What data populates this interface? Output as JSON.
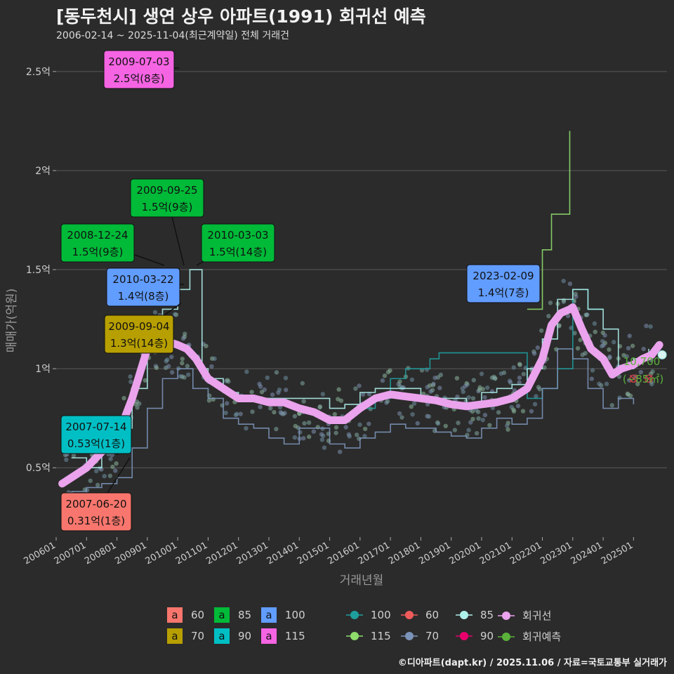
{
  "title": "[동두천시] 생연 상우 아파트(1991) 회귀선 예측",
  "subtitle": "2006-02-14 ~ 2025-11-04(최근계약일) 전체 거래건",
  "credit": "©디아파트(dapt.kr) / 2025.11.06 / 자료=국토교통부 실거래가",
  "chart_data": {
    "type": "scatter",
    "xlabel": "거래년월",
    "ylabel": "매매가(억원)",
    "xlim": [
      2006.0,
      2026.1
    ],
    "ylim": [
      0.15,
      2.62
    ],
    "x_ticks": [
      "200601",
      "200701",
      "200801",
      "200901",
      "201001",
      "201101",
      "201201",
      "201301",
      "201401",
      "201501",
      "201601",
      "201701",
      "201801",
      "201901",
      "202001",
      "202101",
      "202201",
      "202301",
      "202401",
      "202501"
    ],
    "y_ticks": [
      {
        "value": 0.5,
        "label": "0.5억"
      },
      {
        "value": 1.0,
        "label": "1억"
      },
      {
        "value": 1.5,
        "label": "1.5억"
      },
      {
        "value": 2.0,
        "label": "2억"
      },
      {
        "value": 2.5,
        "label": "2.5억"
      }
    ],
    "colors": {
      "60": "#f8766d",
      "70": "#b79f00",
      "85": "#00ba38",
      "90": "#00bfc4",
      "100": "#619cff",
      "115": "#f564e3",
      "line100": "#1f9e9e",
      "line115": "#8fdc6c",
      "line60": "#ef5b5b",
      "line70": "#7b93b8",
      "line85": "#aef0ec",
      "line90": "#e8006c",
      "regression": "#eaa3ec",
      "forecast": "#5ab23a"
    },
    "annotations": [
      {
        "date": "2009-07-03",
        "price": "2.5억(8층)",
        "area": "115"
      },
      {
        "date": "2009-09-25",
        "price": "1.5억(9층)",
        "area": "85"
      },
      {
        "date": "2008-12-24",
        "price": "1.5억(9층)",
        "area": "85"
      },
      {
        "date": "2010-03-03",
        "price": "1.5억(14층)",
        "area": "85"
      },
      {
        "date": "2010-03-22",
        "price": "1.4억(8층)",
        "area": "100"
      },
      {
        "date": "2009-09-04",
        "price": "1.3억(14층)",
        "area": "70"
      },
      {
        "date": "2023-02-09",
        "price": "1.4억(7층)",
        "area": "100"
      },
      {
        "date": "2007-07-14",
        "price": "0.53억(1층)",
        "area": "90"
      },
      {
        "date": "2007-06-20",
        "price": "0.31억(1층)",
        "area": "60"
      }
    ],
    "forecast_label": {
      "value": "10,700",
      "area": "(~85㎡)"
    },
    "series": [
      {
        "name": "회귀선",
        "x": [
          2006.2,
          2006.5,
          2007.0,
          2007.5,
          2008.0,
          2008.5,
          2008.8,
          2009.0,
          2009.2,
          2009.6,
          2010.0,
          2010.3,
          2010.6,
          2011.0,
          2011.5,
          2012.0,
          2012.5,
          2013.0,
          2013.5,
          2014.0,
          2014.5,
          2015.0,
          2015.5,
          2016.0,
          2016.5,
          2017.0,
          2017.5,
          2018.0,
          2018.5,
          2019.0,
          2019.5,
          2020.0,
          2020.5,
          2021.0,
          2021.5,
          2022.0,
          2022.3,
          2022.6,
          2022.9,
          2023.0,
          2023.3,
          2023.6,
          2024.0,
          2024.3,
          2024.6,
          2025.0,
          2025.3,
          2025.6,
          2025.85
        ],
        "y": [
          0.42,
          0.45,
          0.5,
          0.58,
          0.65,
          0.85,
          1.0,
          1.1,
          1.15,
          1.14,
          1.12,
          1.1,
          1.05,
          0.95,
          0.9,
          0.85,
          0.85,
          0.83,
          0.83,
          0.8,
          0.78,
          0.74,
          0.74,
          0.8,
          0.85,
          0.87,
          0.86,
          0.85,
          0.84,
          0.82,
          0.81,
          0.82,
          0.83,
          0.85,
          0.9,
          1.05,
          1.22,
          1.28,
          1.3,
          1.31,
          1.2,
          1.1,
          1.05,
          0.97,
          1.0,
          1.02,
          1.05,
          1.07,
          1.12
        ]
      },
      {
        "name": "100",
        "x": [
          2015.8,
          2016.5,
          2017.0,
          2017.5,
          2018.0,
          2018.3,
          2018.6,
          2021.5,
          2022.0,
          2022.5,
          2023.0,
          2023.5,
          2024.0
        ],
        "y": [
          0.8,
          0.85,
          0.95,
          1.0,
          1.0,
          1.05,
          1.08,
          0.85,
          0.9,
          1.0,
          1.4,
          1.3,
          1.3
        ]
      },
      {
        "name": "70",
        "x": [
          2006.5,
          2007.0,
          2007.5,
          2008.0,
          2008.5,
          2009.0,
          2009.5,
          2010.0,
          2010.5,
          2011.0,
          2011.5,
          2012.0,
          2012.5,
          2013.0,
          2013.5,
          2014.0,
          2014.5,
          2015.0,
          2015.5,
          2016.0,
          2016.5,
          2017.0,
          2017.5,
          2018.0,
          2018.5,
          2019.0,
          2019.5,
          2020.0,
          2020.5,
          2021.0,
          2021.5,
          2022.0,
          2022.5,
          2023.0,
          2023.5,
          2024.0,
          2024.5,
          2025.0
        ],
        "y": [
          0.38,
          0.4,
          0.42,
          0.45,
          0.6,
          0.8,
          0.95,
          1.0,
          0.9,
          0.85,
          0.75,
          0.72,
          0.7,
          0.65,
          0.62,
          0.7,
          0.7,
          0.62,
          0.6,
          0.65,
          0.68,
          0.72,
          0.7,
          0.7,
          0.68,
          0.66,
          0.65,
          0.7,
          0.75,
          0.72,
          0.75,
          0.9,
          1.1,
          1.05,
          0.9,
          0.8,
          0.85,
          0.82
        ]
      },
      {
        "name": "85",
        "x": [
          2006.5,
          2007.0,
          2007.5,
          2008.0,
          2008.5,
          2009.0,
          2009.5,
          2010.0,
          2010.4,
          2010.8,
          2011.0,
          2011.5,
          2012.0,
          2013.0,
          2014.0,
          2015.0,
          2015.5,
          2016.0,
          2016.5,
          2017.0,
          2018.0,
          2019.0,
          2019.5,
          2020.0,
          2020.5,
          2021.0,
          2021.5,
          2022.0,
          2022.5,
          2023.0,
          2023.5,
          2024.0,
          2024.5,
          2025.0,
          2025.5
        ],
        "y": [
          0.55,
          0.5,
          0.6,
          0.7,
          0.9,
          1.2,
          1.3,
          1.4,
          1.5,
          1.0,
          0.95,
          0.88,
          0.85,
          0.85,
          0.85,
          0.8,
          0.82,
          0.88,
          0.9,
          0.9,
          0.85,
          0.85,
          0.82,
          0.88,
          0.9,
          0.92,
          1.0,
          1.15,
          1.35,
          1.4,
          1.3,
          1.2,
          1.0,
          1.05,
          1.1
        ]
      },
      {
        "name": "115",
        "x": [
          2021.5,
          2022.0,
          2022.3,
          2022.8,
          2022.9
        ],
        "y": [
          1.3,
          1.6,
          1.78,
          1.78,
          2.2
        ]
      },
      {
        "name": "회귀예측",
        "x": [
          2025.0,
          2025.5
        ],
        "y": [
          0.95,
          0.95
        ]
      }
    ]
  },
  "legend": {
    "area_boxes": [
      {
        "glyph": "a",
        "label": "60",
        "color": "#f8766d"
      },
      {
        "glyph": "a",
        "label": "70",
        "color": "#b79f00"
      },
      {
        "glyph": "a",
        "label": "85",
        "color": "#00ba38"
      },
      {
        "glyph": "a",
        "label": "90",
        "color": "#00bfc4"
      },
      {
        "glyph": "a",
        "label": "100",
        "color": "#619cff"
      },
      {
        "glyph": "a",
        "label": "115",
        "color": "#f564e3"
      }
    ],
    "line_items": [
      {
        "label": "100",
        "color": "#1f9e9e"
      },
      {
        "label": "115",
        "color": "#8fdc6c"
      },
      {
        "label": "60",
        "color": "#ef5b5b"
      },
      {
        "label": "70",
        "color": "#7b93b8"
      },
      {
        "label": "85",
        "color": "#aef0ec"
      },
      {
        "label": "90",
        "color": "#e8006c"
      },
      {
        "label": "회귀선",
        "color": "#eaa3ec"
      },
      {
        "label": "회귀예측",
        "color": "#5ab23a"
      }
    ]
  }
}
